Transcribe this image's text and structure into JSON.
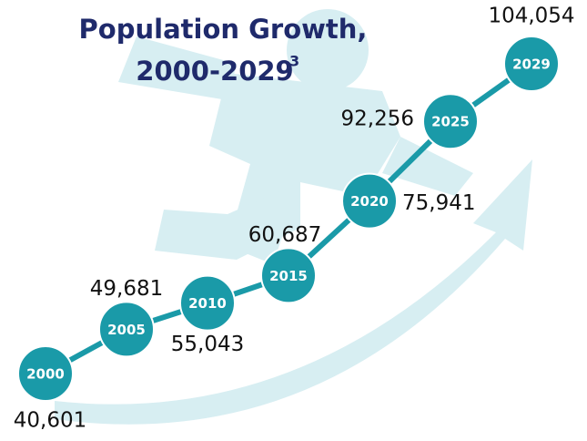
{
  "chart_data": {
    "type": "line",
    "title": [
      "Population Growth,",
      "2000-2029"
    ],
    "title_note": "3",
    "categories": [
      "2000",
      "2005",
      "2010",
      "2015",
      "2020",
      "2025",
      "2029"
    ],
    "values": [
      40601,
      49681,
      55043,
      60687,
      75941,
      92256,
      104054
    ],
    "value_labels": [
      "40,601",
      "49,681",
      "55,043",
      "60,687",
      "75,941",
      "92,256",
      "104,054"
    ],
    "color": "#1a9aa8"
  }
}
